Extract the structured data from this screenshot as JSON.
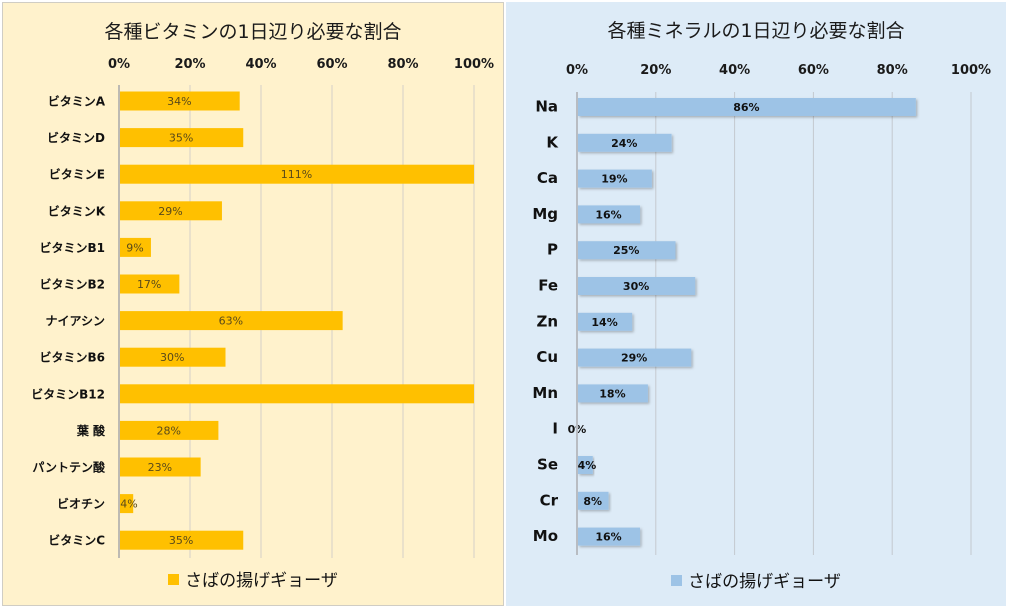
{
  "chart_data": [
    {
      "type": "bar",
      "orientation": "horizontal",
      "title": "各種ビタミンの1日辺り必要な割合",
      "categories": [
        "ビタミンA",
        "ビタミンD",
        "ビタミンE",
        "ビタミンK",
        "ビタミンB1",
        "ビタミンB2",
        "ナイアシン",
        "ビタミンB6",
        "ビタミンB12",
        "葉 酸",
        "パントテン酸",
        "ビオチン",
        "ビタミンC"
      ],
      "series": [
        {
          "name": "さばの揚げギョーザ",
          "color": "#FFC000",
          "values": [
            34,
            35,
            111,
            29,
            9,
            17,
            63,
            30,
            100,
            28,
            23,
            4,
            35
          ],
          "data_labels": [
            "34%",
            "35%",
            "111%",
            "29%",
            "9%",
            "17%",
            "63%",
            "30%",
            "",
            "28%",
            "23%",
            "4%",
            "35%"
          ]
        }
      ],
      "xlim": [
        0,
        100
      ],
      "xticks": [
        "0%",
        "20%",
        "40%",
        "60%",
        "80%",
        "100%"
      ],
      "xaxis_position": "top",
      "grid": true,
      "legend": "bottom",
      "background": "#FFF2CC"
    },
    {
      "type": "bar",
      "orientation": "horizontal",
      "title": "各種ミネラルの1日辺り必要な割合",
      "categories": [
        "Na",
        "K",
        "Ca",
        "Mg",
        "P",
        "Fe",
        "Zn",
        "Cu",
        "Mn",
        "I",
        "Se",
        "Cr",
        "Mo"
      ],
      "series": [
        {
          "name": "さばの揚げギョーザ",
          "color": "#9DC3E6",
          "values": [
            86,
            24,
            19,
            16,
            25,
            30,
            14,
            29,
            18,
            0,
            4,
            8,
            16
          ],
          "data_labels": [
            "86%",
            "24%",
            "19%",
            "16%",
            "25%",
            "30%",
            "14%",
            "29%",
            "18%",
            "0%",
            "4%",
            "8%",
            "16%"
          ]
        }
      ],
      "xlim": [
        0,
        100
      ],
      "xticks": [
        "0%",
        "20%",
        "40%",
        "60%",
        "80%",
        "100%"
      ],
      "xaxis_position": "top",
      "grid": true,
      "legend": "bottom",
      "background": "#DDEBF7"
    }
  ]
}
